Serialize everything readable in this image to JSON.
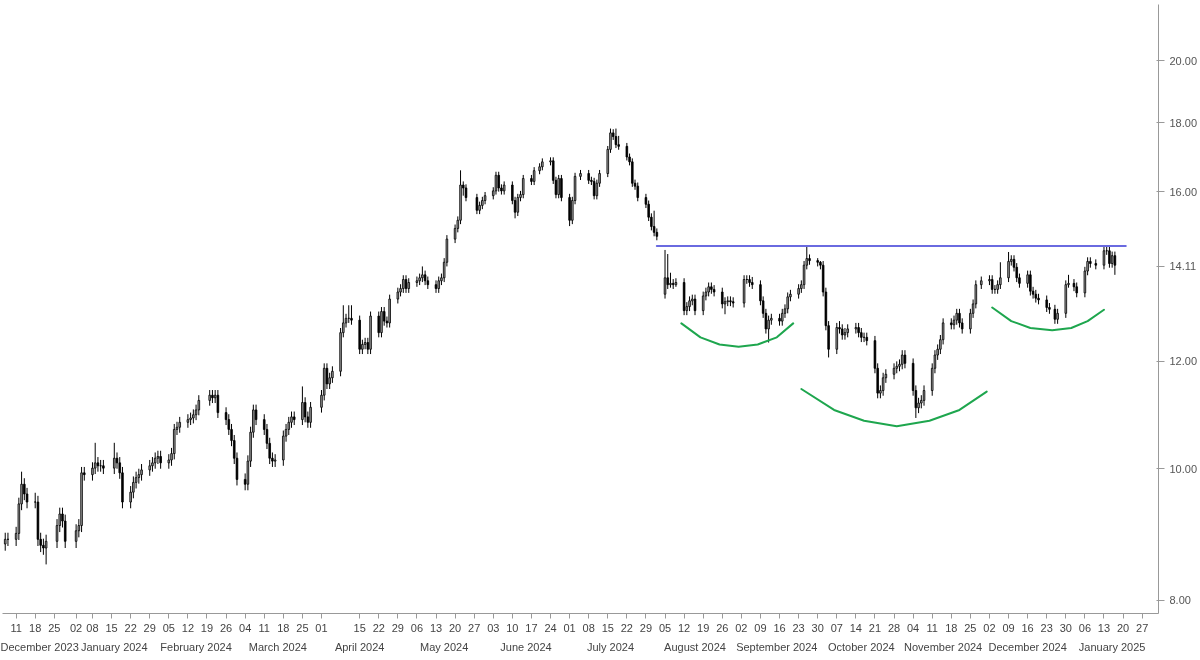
{
  "chart_data": {
    "type": "candlestick",
    "log": true,
    "grid": false,
    "ylim": [
      7.82,
      22.0
    ],
    "yticks": [
      {
        "value": 8,
        "label": "8.00"
      },
      {
        "value": 10,
        "label": "10.00"
      },
      {
        "value": 12,
        "label": "12.00"
      },
      {
        "value": 14.11,
        "label": "14.11"
      },
      {
        "value": 16,
        "label": "16.00"
      },
      {
        "value": 18,
        "label": "18.00"
      },
      {
        "value": 20,
        "label": "20.00"
      }
    ],
    "xlim": [
      "2023-12-06",
      "2025-02-02"
    ],
    "xticks": [
      {
        "value": "2023-12-11",
        "label": "11"
      },
      {
        "value": "2023-12-18",
        "label": "18"
      },
      {
        "value": "2023-12-25",
        "label": "25"
      },
      {
        "value": "2024-01-02",
        "label": "02"
      },
      {
        "value": "2024-01-08",
        "label": "08"
      },
      {
        "value": "2024-01-15",
        "label": "15"
      },
      {
        "value": "2024-01-22",
        "label": "22"
      },
      {
        "value": "2024-01-29",
        "label": "29"
      },
      {
        "value": "2024-02-05",
        "label": "05"
      },
      {
        "value": "2024-02-12",
        "label": "12"
      },
      {
        "value": "2024-02-19",
        "label": "19"
      },
      {
        "value": "2024-02-26",
        "label": "26"
      },
      {
        "value": "2024-03-04",
        "label": "04"
      },
      {
        "value": "2024-03-11",
        "label": "11"
      },
      {
        "value": "2024-03-18",
        "label": "18"
      },
      {
        "value": "2024-03-25",
        "label": "25"
      },
      {
        "value": "2024-04-01",
        "label": "01"
      },
      {
        "value": "2024-04-15",
        "label": "15"
      },
      {
        "value": "2024-04-22",
        "label": "22"
      },
      {
        "value": "2024-04-29",
        "label": "29"
      },
      {
        "value": "2024-05-06",
        "label": "06"
      },
      {
        "value": "2024-05-13",
        "label": "13"
      },
      {
        "value": "2024-05-20",
        "label": "20"
      },
      {
        "value": "2024-05-27",
        "label": "27"
      },
      {
        "value": "2024-06-03",
        "label": "03"
      },
      {
        "value": "2024-06-10",
        "label": "10"
      },
      {
        "value": "2024-06-17",
        "label": "17"
      },
      {
        "value": "2024-06-24",
        "label": "24"
      },
      {
        "value": "2024-07-01",
        "label": "01"
      },
      {
        "value": "2024-07-08",
        "label": "08"
      },
      {
        "value": "2024-07-15",
        "label": "15"
      },
      {
        "value": "2024-07-22",
        "label": "22"
      },
      {
        "value": "2024-07-29",
        "label": "29"
      },
      {
        "value": "2024-08-05",
        "label": "05"
      },
      {
        "value": "2024-08-12",
        "label": "12"
      },
      {
        "value": "2024-08-19",
        "label": "19"
      },
      {
        "value": "2024-08-26",
        "label": "26"
      },
      {
        "value": "2024-09-02",
        "label": "02"
      },
      {
        "value": "2024-09-09",
        "label": "09"
      },
      {
        "value": "2024-09-16",
        "label": "16"
      },
      {
        "value": "2024-09-23",
        "label": "23"
      },
      {
        "value": "2024-09-30",
        "label": "30"
      },
      {
        "value": "2024-10-07",
        "label": "07"
      },
      {
        "value": "2024-10-14",
        "label": "14"
      },
      {
        "value": "2024-10-21",
        "label": "21"
      },
      {
        "value": "2024-10-28",
        "label": "28"
      },
      {
        "value": "2024-11-04",
        "label": "04"
      },
      {
        "value": "2024-11-11",
        "label": "11"
      },
      {
        "value": "2024-11-18",
        "label": "18"
      },
      {
        "value": "2024-11-25",
        "label": "25"
      },
      {
        "value": "2024-12-02",
        "label": "02"
      },
      {
        "value": "2024-12-09",
        "label": "09"
      },
      {
        "value": "2024-12-16",
        "label": "16"
      },
      {
        "value": "2024-12-23",
        "label": "23"
      },
      {
        "value": "2024-12-30",
        "label": "30"
      },
      {
        "value": "2025-01-06",
        "label": "06"
      },
      {
        "value": "2025-01-13",
        "label": "13"
      },
      {
        "value": "2025-01-20",
        "label": "20"
      },
      {
        "value": "2025-01-27",
        "label": "27"
      }
    ],
    "x2lim": [
      "2023-12-06",
      "2025-02-02"
    ],
    "x2ticks": [
      {
        "value": "2023-12-18",
        "label": "December 2023"
      },
      {
        "value": "2024-01-16",
        "label": "January 2024"
      },
      {
        "value": "2024-02-15",
        "label": "February 2024"
      },
      {
        "value": "2024-03-16",
        "label": "March 2024"
      },
      {
        "value": "2024-04-15",
        "label": "April 2024"
      },
      {
        "value": "2024-05-16",
        "label": "May 2024"
      },
      {
        "value": "2024-06-15",
        "label": "June 2024"
      },
      {
        "value": "2024-07-16",
        "label": "July 2024"
      },
      {
        "value": "2024-08-16",
        "label": "August 2024"
      },
      {
        "value": "2024-09-15",
        "label": "September 2024"
      },
      {
        "value": "2024-10-16",
        "label": "October 2024"
      },
      {
        "value": "2024-11-15",
        "label": "November 2024"
      },
      {
        "value": "2024-12-16",
        "label": "December 2024"
      },
      {
        "value": "2025-01-16",
        "label": "January 2025"
      }
    ],
    "x": [
      "2023-12-07",
      "2023-12-08",
      "2023-12-11",
      "2023-12-12",
      "2023-12-13",
      "2023-12-14",
      "2023-12-15",
      "2023-12-18",
      "2023-12-19",
      "2023-12-20",
      "2023-12-21",
      "2023-12-22",
      "2023-12-26",
      "2023-12-27",
      "2023-12-28",
      "2023-12-29",
      "2024-01-02",
      "2024-01-03",
      "2024-01-04",
      "2024-01-05",
      "2024-01-08",
      "2024-01-09",
      "2024-01-10",
      "2024-01-11",
      "2024-01-12",
      "2024-01-16",
      "2024-01-17",
      "2024-01-18",
      "2024-01-19",
      "2024-01-22",
      "2024-01-23",
      "2024-01-24",
      "2024-01-25",
      "2024-01-26",
      "2024-01-29",
      "2024-01-30",
      "2024-01-31",
      "2024-02-01",
      "2024-02-02",
      "2024-02-05",
      "2024-02-06",
      "2024-02-07",
      "2024-02-08",
      "2024-02-09",
      "2024-02-12",
      "2024-02-13",
      "2024-02-14",
      "2024-02-15",
      "2024-02-16",
      "2024-02-20",
      "2024-02-21",
      "2024-02-22",
      "2024-02-23",
      "2024-02-26",
      "2024-02-27",
      "2024-02-28",
      "2024-02-29",
      "2024-03-01",
      "2024-03-04",
      "2024-03-05",
      "2024-03-06",
      "2024-03-07",
      "2024-03-08",
      "2024-03-11",
      "2024-03-12",
      "2024-03-13",
      "2024-03-14",
      "2024-03-15",
      "2024-03-18",
      "2024-03-19",
      "2024-03-20",
      "2024-03-21",
      "2024-03-22",
      "2024-03-25",
      "2024-03-26",
      "2024-03-27",
      "2024-03-28",
      "2024-04-01",
      "2024-04-02",
      "2024-04-03",
      "2024-04-04",
      "2024-04-05",
      "2024-04-08",
      "2024-04-09",
      "2024-04-10",
      "2024-04-11",
      "2024-04-12",
      "2024-04-15",
      "2024-04-16",
      "2024-04-17",
      "2024-04-18",
      "2024-04-19",
      "2024-04-22",
      "2024-04-23",
      "2024-04-24",
      "2024-04-25",
      "2024-04-26",
      "2024-04-29",
      "2024-04-30",
      "2024-05-01",
      "2024-05-02",
      "2024-05-03",
      "2024-05-06",
      "2024-05-07",
      "2024-05-08",
      "2024-05-09",
      "2024-05-10",
      "2024-05-13",
      "2024-05-14",
      "2024-05-15",
      "2024-05-16",
      "2024-05-17",
      "2024-05-20",
      "2024-05-21",
      "2024-05-22",
      "2024-05-23",
      "2024-05-24",
      "2024-05-28",
      "2024-05-29",
      "2024-05-30",
      "2024-05-31",
      "2024-06-03",
      "2024-06-04",
      "2024-06-05",
      "2024-06-06",
      "2024-06-07",
      "2024-06-10",
      "2024-06-11",
      "2024-06-12",
      "2024-06-13",
      "2024-06-14",
      "2024-06-17",
      "2024-06-18",
      "2024-06-20",
      "2024-06-21",
      "2024-06-24",
      "2024-06-25",
      "2024-06-26",
      "2024-06-27",
      "2024-06-28",
      "2024-07-01",
      "2024-07-02",
      "2024-07-03",
      "2024-07-05",
      "2024-07-08",
      "2024-07-09",
      "2024-07-10",
      "2024-07-11",
      "2024-07-12",
      "2024-07-15",
      "2024-07-16",
      "2024-07-17",
      "2024-07-18",
      "2024-07-19",
      "2024-07-22",
      "2024-07-23",
      "2024-07-24",
      "2024-07-25",
      "2024-07-26",
      "2024-07-29",
      "2024-07-30",
      "2024-07-31",
      "2024-08-01",
      "2024-08-02",
      "2024-08-05",
      "2024-08-06",
      "2024-08-07",
      "2024-08-08",
      "2024-08-09",
      "2024-08-12",
      "2024-08-13",
      "2024-08-14",
      "2024-08-15",
      "2024-08-16",
      "2024-08-19",
      "2024-08-20",
      "2024-08-21",
      "2024-08-22",
      "2024-08-23",
      "2024-08-26",
      "2024-08-27",
      "2024-08-28",
      "2024-08-29",
      "2024-08-30",
      "2024-09-03",
      "2024-09-04",
      "2024-09-05",
      "2024-09-06",
      "2024-09-09",
      "2024-09-10",
      "2024-09-11",
      "2024-09-12",
      "2024-09-13",
      "2024-09-16",
      "2024-09-17",
      "2024-09-18",
      "2024-09-19",
      "2024-09-20",
      "2024-09-23",
      "2024-09-24",
      "2024-09-25",
      "2024-09-26",
      "2024-09-27",
      "2024-09-30",
      "2024-10-01",
      "2024-10-02",
      "2024-10-03",
      "2024-10-04",
      "2024-10-07",
      "2024-10-08",
      "2024-10-09",
      "2024-10-10",
      "2024-10-11",
      "2024-10-14",
      "2024-10-15",
      "2024-10-16",
      "2024-10-17",
      "2024-10-18",
      "2024-10-21",
      "2024-10-22",
      "2024-10-23",
      "2024-10-24",
      "2024-10-25",
      "2024-10-28",
      "2024-10-29",
      "2024-10-30",
      "2024-10-31",
      "2024-11-01",
      "2024-11-04",
      "2024-11-05",
      "2024-11-06",
      "2024-11-07",
      "2024-11-08",
      "2024-11-11",
      "2024-11-12",
      "2024-11-13",
      "2024-11-14",
      "2024-11-15",
      "2024-11-18",
      "2024-11-19",
      "2024-11-20",
      "2024-11-21",
      "2024-11-22",
      "2024-11-25",
      "2024-11-26",
      "2024-11-27",
      "2024-11-29",
      "2024-12-02",
      "2024-12-03",
      "2024-12-04",
      "2024-12-05",
      "2024-12-06",
      "2024-12-09",
      "2024-12-10",
      "2024-12-11",
      "2024-12-12",
      "2024-12-13",
      "2024-12-16",
      "2024-12-17",
      "2024-12-18",
      "2024-12-19",
      "2024-12-20",
      "2024-12-23",
      "2024-12-24",
      "2024-12-26",
      "2024-12-27",
      "2024-12-30",
      "2024-12-31",
      "2025-01-02",
      "2025-01-03",
      "2025-01-06",
      "2025-01-07",
      "2025-01-08",
      "2025-01-10",
      "2025-01-13",
      "2025-01-14",
      "2025-01-15",
      "2025-01-16",
      "2025-01-17"
    ],
    "ohlc": [
      [
        8.8,
        8.97,
        8.7,
        8.87
      ],
      [
        8.87,
        8.97,
        8.77,
        8.87
      ],
      [
        8.87,
        9.06,
        8.77,
        8.96
      ],
      [
        8.96,
        9.52,
        8.86,
        9.42
      ],
      [
        9.42,
        9.95,
        9.32,
        9.74
      ],
      [
        9.74,
        9.84,
        9.48,
        9.58
      ],
      [
        9.58,
        9.68,
        9.35,
        9.45
      ],
      [
        9.45,
        9.6,
        9.35,
        9.45
      ],
      [
        9.45,
        9.55,
        8.77,
        8.87
      ],
      [
        8.87,
        8.97,
        8.68,
        8.78
      ],
      [
        8.78,
        8.88,
        8.64,
        8.74
      ],
      [
        8.74,
        8.94,
        8.5,
        8.84
      ],
      [
        8.84,
        9.18,
        8.74,
        9.08
      ],
      [
        9.08,
        9.36,
        8.98,
        9.26
      ],
      [
        9.26,
        9.36,
        9.05,
        9.15
      ],
      [
        9.15,
        9.25,
        8.74,
        8.84
      ],
      [
        8.84,
        9.1,
        8.74,
        9.0
      ],
      [
        9.0,
        9.18,
        8.9,
        9.08
      ],
      [
        9.08,
        10.03,
        8.98,
        9.93
      ],
      [
        9.93,
        10.03,
        9.8,
        9.9
      ],
      [
        9.9,
        10.11,
        9.8,
        10.01
      ],
      [
        10.01,
        10.45,
        9.91,
        10.1
      ],
      [
        10.1,
        10.2,
        9.95,
        10.05
      ],
      [
        10.05,
        10.15,
        9.95,
        10.05
      ],
      [
        10.05,
        10.15,
        9.91,
        10.01
      ],
      [
        10.01,
        10.45,
        9.91,
        10.18
      ],
      [
        10.18,
        10.28,
        10.0,
        10.1
      ],
      [
        10.1,
        10.2,
        9.83,
        9.93
      ],
      [
        9.93,
        10.03,
        9.35,
        9.45
      ],
      [
        9.45,
        9.71,
        9.35,
        9.61
      ],
      [
        9.61,
        9.87,
        9.51,
        9.77
      ],
      [
        9.77,
        9.95,
        9.67,
        9.85
      ],
      [
        9.85,
        10.0,
        9.75,
        9.9
      ],
      [
        9.9,
        10.08,
        9.8,
        9.98
      ],
      [
        9.98,
        10.15,
        9.88,
        10.05
      ],
      [
        10.05,
        10.2,
        9.95,
        10.1
      ],
      [
        10.1,
        10.28,
        10.0,
        10.18
      ],
      [
        10.18,
        10.31,
        10.08,
        10.21
      ],
      [
        10.21,
        10.31,
        10.0,
        10.1
      ],
      [
        10.1,
        10.25,
        10.0,
        10.15
      ],
      [
        10.15,
        10.36,
        10.05,
        10.26
      ],
      [
        10.26,
        10.79,
        10.16,
        10.69
      ],
      [
        10.69,
        10.83,
        10.59,
        10.73
      ],
      [
        10.73,
        10.92,
        10.63,
        10.82
      ],
      [
        10.82,
        10.97,
        10.72,
        10.87
      ],
      [
        10.87,
        11.0,
        10.77,
        10.9
      ],
      [
        10.9,
        11.06,
        10.8,
        10.96
      ],
      [
        10.96,
        11.15,
        10.86,
        11.05
      ],
      [
        11.05,
        11.33,
        10.95,
        11.23
      ],
      [
        11.23,
        11.43,
        11.13,
        11.33
      ],
      [
        11.33,
        11.43,
        11.18,
        11.28
      ],
      [
        11.28,
        11.43,
        11.18,
        11.33
      ],
      [
        11.33,
        11.43,
        10.9,
        11.0
      ],
      [
        11.0,
        11.1,
        10.77,
        10.87
      ],
      [
        10.87,
        10.97,
        10.59,
        10.69
      ],
      [
        10.69,
        10.79,
        10.39,
        10.49
      ],
      [
        10.49,
        10.59,
        10.08,
        10.18
      ],
      [
        10.18,
        10.28,
        9.72,
        9.82
      ],
      [
        9.82,
        9.92,
        9.64,
        9.74
      ],
      [
        9.74,
        10.23,
        9.64,
        10.13
      ],
      [
        10.13,
        10.74,
        10.03,
        10.64
      ],
      [
        10.64,
        11.15,
        10.54,
        11.05
      ],
      [
        11.05,
        11.15,
        10.77,
        10.87
      ],
      [
        10.87,
        10.97,
        10.59,
        10.69
      ],
      [
        10.69,
        10.79,
        10.34,
        10.44
      ],
      [
        10.44,
        10.54,
        10.08,
        10.18
      ],
      [
        10.18,
        10.28,
        10.03,
        10.13
      ],
      [
        10.13,
        10.25,
        10.03,
        10.15
      ],
      [
        10.15,
        10.67,
        10.05,
        10.57
      ],
      [
        10.57,
        10.79,
        10.47,
        10.69
      ],
      [
        10.69,
        10.92,
        10.59,
        10.82
      ],
      [
        10.82,
        11.02,
        10.72,
        10.92
      ],
      [
        10.92,
        11.02,
        10.77,
        10.87
      ],
      [
        10.87,
        11.5,
        10.77,
        11.19
      ],
      [
        11.19,
        11.29,
        10.82,
        10.92
      ],
      [
        10.92,
        11.02,
        10.72,
        10.82
      ],
      [
        10.82,
        11.2,
        10.72,
        11.1
      ],
      [
        11.1,
        11.43,
        11.0,
        11.33
      ],
      [
        11.33,
        11.96,
        11.23,
        11.86
      ],
      [
        11.86,
        11.96,
        11.45,
        11.55
      ],
      [
        11.55,
        11.77,
        11.45,
        11.67
      ],
      [
        11.67,
        11.9,
        11.57,
        11.8
      ],
      [
        11.8,
        12.7,
        11.7,
        12.6
      ],
      [
        12.6,
        13.2,
        12.5,
        12.81
      ],
      [
        12.81,
        13.01,
        12.71,
        12.91
      ],
      [
        12.91,
        13.2,
        12.81,
        12.91
      ],
      [
        12.91,
        13.2,
        12.77,
        12.87
      ],
      [
        12.87,
        12.97,
        12.15,
        12.25
      ],
      [
        12.25,
        12.45,
        12.15,
        12.35
      ],
      [
        12.35,
        12.49,
        12.25,
        12.39
      ],
      [
        12.39,
        12.49,
        12.15,
        12.25
      ],
      [
        12.25,
        13.06,
        12.15,
        12.96
      ],
      [
        12.96,
        13.06,
        12.5,
        12.6
      ],
      [
        12.6,
        13.16,
        12.5,
        13.06
      ],
      [
        13.06,
        13.16,
        12.75,
        12.85
      ],
      [
        12.85,
        12.95,
        12.71,
        12.81
      ],
      [
        12.81,
        13.44,
        12.71,
        13.34
      ],
      [
        13.34,
        13.6,
        13.24,
        13.5
      ],
      [
        13.5,
        13.68,
        13.4,
        13.58
      ],
      [
        13.58,
        13.89,
        13.48,
        13.79
      ],
      [
        13.79,
        13.89,
        13.48,
        13.58
      ],
      [
        13.58,
        13.82,
        13.48,
        13.72
      ],
      [
        13.72,
        13.86,
        13.62,
        13.76
      ],
      [
        13.76,
        13.93,
        13.66,
        13.83
      ],
      [
        13.83,
        14.1,
        13.73,
        13.9
      ],
      [
        13.9,
        14.0,
        13.66,
        13.76
      ],
      [
        13.76,
        13.86,
        13.57,
        13.67
      ],
      [
        13.67,
        13.77,
        13.48,
        13.58
      ],
      [
        13.58,
        13.86,
        13.48,
        13.76
      ],
      [
        13.76,
        13.93,
        13.66,
        13.83
      ],
      [
        13.83,
        14.3,
        13.73,
        14.2
      ],
      [
        14.2,
        14.87,
        14.1,
        14.77
      ],
      [
        14.77,
        15.14,
        14.67,
        15.04
      ],
      [
        15.04,
        15.35,
        14.94,
        15.25
      ],
      [
        15.25,
        16.6,
        15.15,
        16.19
      ],
      [
        16.19,
        16.29,
        15.9,
        16.11
      ],
      [
        16.11,
        16.21,
        15.75,
        15.85
      ],
      [
        15.85,
        15.95,
        15.41,
        15.51
      ],
      [
        15.51,
        15.74,
        15.41,
        15.64
      ],
      [
        15.64,
        15.87,
        15.54,
        15.77
      ],
      [
        15.77,
        16.0,
        15.67,
        15.9
      ],
      [
        15.9,
        16.13,
        15.8,
        16.03
      ],
      [
        16.03,
        16.56,
        15.93,
        16.46
      ],
      [
        16.46,
        16.56,
        16.01,
        16.11
      ],
      [
        16.11,
        16.21,
        15.93,
        16.03
      ],
      [
        16.03,
        16.29,
        15.93,
        16.19
      ],
      [
        16.19,
        16.29,
        15.67,
        15.77
      ],
      [
        15.77,
        15.87,
        15.3,
        15.46
      ],
      [
        15.46,
        15.95,
        15.36,
        15.85
      ],
      [
        15.85,
        16.03,
        15.75,
        15.93
      ],
      [
        15.93,
        16.47,
        15.83,
        16.37
      ],
      [
        16.37,
        16.47,
        16.19,
        16.29
      ],
      [
        16.29,
        16.69,
        16.19,
        16.59
      ],
      [
        16.59,
        16.8,
        16.49,
        16.7
      ],
      [
        16.7,
        16.94,
        16.6,
        16.84
      ],
      [
        16.84,
        16.97,
        16.74,
        16.87
      ],
      [
        16.87,
        16.97,
        16.22,
        16.32
      ],
      [
        16.32,
        16.42,
        15.83,
        15.93
      ],
      [
        15.93,
        16.47,
        15.83,
        16.37
      ],
      [
        16.37,
        16.47,
        15.75,
        15.85
      ],
      [
        15.85,
        15.95,
        15.1,
        15.25
      ],
      [
        15.25,
        15.87,
        15.15,
        15.77
      ],
      [
        15.77,
        16.53,
        15.67,
        16.43
      ],
      [
        16.43,
        16.61,
        16.33,
        16.51
      ],
      [
        16.51,
        16.61,
        16.22,
        16.32
      ],
      [
        16.32,
        16.42,
        16.19,
        16.29
      ],
      [
        16.29,
        16.39,
        15.8,
        15.9
      ],
      [
        15.9,
        16.34,
        15.8,
        16.24
      ],
      [
        16.24,
        16.61,
        16.14,
        16.51
      ],
      [
        16.51,
        17.3,
        16.41,
        17.2
      ],
      [
        17.2,
        17.82,
        17.1,
        17.69
      ],
      [
        17.69,
        17.8,
        17.48,
        17.58
      ],
      [
        17.58,
        17.82,
        17.24,
        17.34
      ],
      [
        17.34,
        17.6,
        17.19,
        17.29
      ],
      [
        17.29,
        17.39,
        16.88,
        16.98
      ],
      [
        16.98,
        17.08,
        16.74,
        16.84
      ],
      [
        16.84,
        16.94,
        16.14,
        16.24
      ],
      [
        16.24,
        16.34,
        16.06,
        16.16
      ],
      [
        16.16,
        16.26,
        15.75,
        15.85
      ],
      [
        15.85,
        15.95,
        15.57,
        15.67
      ],
      [
        15.67,
        15.77,
        15.23,
        15.33
      ],
      [
        15.33,
        15.43,
        14.99,
        15.09
      ],
      [
        15.09,
        15.5,
        14.84,
        14.94
      ],
      [
        14.94,
        15.04,
        14.74,
        14.84
      ],
      [
        13.45,
        14.5,
        13.35,
        13.83
      ],
      [
        13.83,
        14.4,
        13.57,
        13.67
      ],
      [
        13.67,
        13.95,
        13.6,
        13.7
      ],
      [
        13.7,
        13.8,
        13.57,
        13.67
      ],
      [
        13.67,
        13.82,
        13.62,
        13.72
      ],
      [
        13.72,
        13.82,
        12.98,
        13.08
      ],
      [
        13.08,
        13.27,
        12.98,
        13.17
      ],
      [
        13.17,
        13.4,
        13.07,
        13.3
      ],
      [
        13.3,
        13.44,
        13.2,
        13.34
      ],
      [
        13.34,
        13.44,
        12.98,
        13.08
      ],
      [
        13.08,
        13.51,
        12.98,
        13.41
      ],
      [
        13.41,
        13.6,
        13.31,
        13.5
      ],
      [
        13.5,
        13.72,
        13.4,
        13.62
      ],
      [
        13.62,
        13.72,
        13.46,
        13.56
      ],
      [
        13.56,
        13.66,
        13.4,
        13.5
      ],
      [
        13.5,
        13.6,
        13.13,
        13.23
      ],
      [
        13.23,
        13.38,
        13.0,
        13.28
      ],
      [
        13.28,
        13.4,
        13.18,
        13.3
      ],
      [
        13.3,
        13.4,
        13.18,
        13.28
      ],
      [
        13.28,
        13.38,
        13.15,
        13.25
      ],
      [
        13.25,
        13.89,
        13.15,
        13.79
      ],
      [
        13.79,
        13.89,
        13.69,
        13.79
      ],
      [
        13.79,
        13.89,
        13.62,
        13.72
      ],
      [
        13.72,
        13.85,
        13.57,
        13.67
      ],
      [
        13.67,
        13.77,
        13.2,
        13.3
      ],
      [
        13.3,
        13.4,
        12.92,
        13.02
      ],
      [
        13.02,
        13.12,
        12.58,
        12.68
      ],
      [
        12.68,
        12.97,
        12.39,
        12.87
      ],
      [
        12.87,
        13.01,
        12.77,
        12.91
      ],
      [
        12.91,
        13.01,
        12.75,
        12.85
      ],
      [
        12.85,
        13.12,
        12.75,
        13.02
      ],
      [
        13.02,
        13.22,
        12.92,
        13.12
      ],
      [
        13.12,
        13.49,
        13.02,
        13.39
      ],
      [
        13.39,
        13.55,
        13.29,
        13.45
      ],
      [
        13.45,
        13.68,
        13.35,
        13.58
      ],
      [
        13.58,
        13.77,
        13.48,
        13.67
      ],
      [
        13.67,
        14.23,
        13.57,
        14.13
      ],
      [
        14.13,
        14.58,
        14.03,
        14.29
      ],
      [
        14.29,
        14.39,
        14.14,
        14.24
      ],
      [
        14.24,
        14.3,
        14.1,
        14.2
      ],
      [
        14.2,
        14.23,
        14.03,
        14.13
      ],
      [
        14.13,
        14.23,
        13.4,
        13.5
      ],
      [
        13.5,
        13.6,
        12.65,
        12.75
      ],
      [
        12.75,
        12.85,
        12.08,
        12.25
      ],
      [
        12.25,
        12.81,
        12.15,
        12.71
      ],
      [
        12.71,
        12.85,
        12.58,
        12.68
      ],
      [
        12.68,
        12.78,
        12.45,
        12.55
      ],
      [
        12.55,
        12.7,
        12.45,
        12.6
      ],
      [
        12.6,
        12.78,
        12.5,
        12.68
      ],
      [
        12.68,
        12.81,
        12.58,
        12.71
      ],
      [
        12.71,
        12.81,
        12.5,
        12.6
      ],
      [
        12.6,
        12.7,
        12.4,
        12.5
      ],
      [
        12.5,
        12.6,
        12.4,
        12.5
      ],
      [
        12.5,
        12.6,
        12.33,
        12.43
      ],
      [
        12.43,
        12.53,
        11.76,
        11.86
      ],
      [
        11.86,
        11.96,
        11.27,
        11.37
      ],
      [
        11.37,
        11.52,
        11.27,
        11.42
      ],
      [
        11.42,
        11.77,
        11.32,
        11.67
      ],
      [
        11.67,
        11.84,
        11.57,
        11.74
      ],
      [
        11.74,
        11.96,
        11.64,
        11.86
      ],
      [
        11.86,
        12.0,
        11.76,
        11.9
      ],
      [
        11.9,
        12.04,
        11.8,
        11.94
      ],
      [
        11.94,
        12.23,
        11.84,
        12.13
      ],
      [
        12.13,
        12.23,
        11.86,
        11.96
      ],
      [
        11.96,
        12.06,
        11.32,
        11.42
      ],
      [
        11.42,
        11.52,
        10.9,
        11.09
      ],
      [
        11.09,
        11.28,
        10.99,
        11.18
      ],
      [
        11.18,
        11.33,
        11.08,
        11.23
      ],
      [
        11.23,
        11.52,
        11.13,
        11.42
      ],
      [
        11.42,
        11.96,
        11.32,
        11.86
      ],
      [
        11.86,
        12.23,
        11.76,
        12.13
      ],
      [
        12.13,
        12.35,
        12.03,
        12.25
      ],
      [
        12.25,
        12.55,
        12.15,
        12.45
      ],
      [
        12.45,
        12.91,
        12.35,
        12.81
      ],
      [
        12.81,
        12.91,
        12.67,
        12.77
      ],
      [
        12.77,
        12.97,
        12.67,
        12.87
      ],
      [
        12.87,
        13.12,
        12.77,
        13.02
      ],
      [
        13.02,
        13.12,
        12.71,
        12.81
      ],
      [
        12.81,
        12.91,
        12.58,
        12.68
      ],
      [
        12.68,
        13.12,
        12.58,
        13.02
      ],
      [
        13.02,
        13.33,
        12.92,
        13.23
      ],
      [
        13.23,
        13.77,
        13.13,
        13.67
      ],
      [
        13.67,
        13.86,
        13.57,
        13.76
      ],
      [
        13.76,
        13.89,
        13.66,
        13.79
      ],
      [
        13.79,
        13.89,
        13.46,
        13.56
      ],
      [
        13.56,
        13.66,
        13.46,
        13.56
      ],
      [
        13.56,
        13.77,
        13.46,
        13.67
      ],
      [
        13.67,
        14.2,
        13.57,
        13.83
      ],
      [
        13.83,
        14.45,
        13.73,
        14.22
      ],
      [
        14.22,
        14.37,
        14.12,
        14.27
      ],
      [
        14.27,
        14.37,
        13.98,
        14.08
      ],
      [
        14.08,
        14.18,
        13.73,
        13.83
      ],
      [
        13.83,
        13.93,
        13.6,
        13.7
      ],
      [
        13.7,
        14.0,
        13.6,
        13.9
      ],
      [
        13.9,
        14.0,
        13.42,
        13.52
      ],
      [
        13.52,
        13.62,
        13.35,
        13.45
      ],
      [
        13.45,
        13.55,
        13.26,
        13.36
      ],
      [
        13.36,
        13.46,
        13.22,
        13.32
      ],
      [
        13.32,
        13.42,
        13.05,
        13.15
      ],
      [
        13.15,
        13.25,
        13.01,
        13.11
      ],
      [
        13.11,
        13.21,
        12.79,
        12.89
      ],
      [
        12.89,
        13.12,
        12.79,
        13.02
      ],
      [
        13.02,
        13.77,
        12.92,
        13.67
      ],
      [
        13.67,
        13.9,
        13.6,
        13.7
      ],
      [
        13.7,
        13.8,
        13.52,
        13.62
      ],
      [
        13.62,
        13.72,
        13.38,
        13.48
      ],
      [
        13.48,
        14.09,
        13.38,
        13.99
      ],
      [
        13.99,
        14.32,
        13.89,
        14.22
      ],
      [
        14.22,
        14.32,
        14.07,
        14.17
      ],
      [
        14.17,
        14.27,
        14.03,
        14.13
      ],
      [
        14.13,
        14.58,
        14.03,
        14.48
      ],
      [
        14.48,
        14.58,
        14.38,
        14.48
      ],
      [
        14.48,
        14.58,
        14.07,
        14.17
      ],
      [
        14.17,
        14.46,
        14.07,
        14.36
      ],
      [
        14.36,
        14.46,
        13.9,
        14.13
      ]
    ],
    "series": [
      {
        "type": "line",
        "color": "#6a6ae0",
        "x": [
          "2024-08-02",
          "2025-01-21"
        ],
        "values": [
          14.6,
          14.6
        ]
      },
      {
        "type": "line",
        "color": "#1ea64e",
        "x": [
          "2024-08-11",
          "2024-08-18",
          "2024-08-25",
          "2024-09-01",
          "2024-09-08",
          "2024-09-15",
          "2024-09-21"
        ],
        "values": [
          12.8,
          12.5,
          12.35,
          12.3,
          12.35,
          12.5,
          12.8
        ]
      },
      {
        "type": "line",
        "color": "#1ea64e",
        "x": [
          "2024-09-24",
          "2024-10-06",
          "2024-10-17",
          "2024-10-29",
          "2024-11-10",
          "2024-11-21",
          "2024-12-01"
        ],
        "values": [
          11.45,
          11.05,
          10.85,
          10.75,
          10.85,
          11.05,
          11.4
        ]
      },
      {
        "type": "line",
        "color": "#1ea64e",
        "x": [
          "2024-12-03",
          "2024-12-10",
          "2024-12-17",
          "2024-12-25",
          "2025-01-01",
          "2025-01-07",
          "2025-01-13"
        ],
        "values": [
          13.15,
          12.85,
          12.7,
          12.65,
          12.7,
          12.85,
          13.1
        ]
      }
    ]
  }
}
